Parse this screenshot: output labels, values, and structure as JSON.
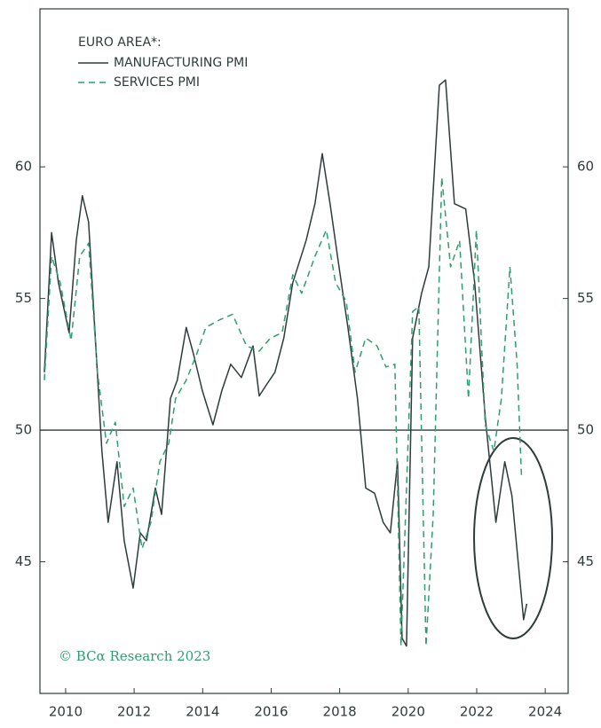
{
  "chart_data": {
    "type": "line",
    "title": "EURO AREA*:",
    "source": "© BCα Research 2023",
    "xlim": [
      2009.25,
      2024.67
    ],
    "xticks": [
      2010,
      2012,
      2014,
      2016,
      2018,
      2020,
      2022,
      2024
    ],
    "ylim": [
      40,
      66
    ],
    "yticks": [
      45,
      50,
      55,
      60
    ],
    "hline": 50,
    "series": [
      {
        "name": "MANUFACTURING PMI",
        "color": "#2f3b3b",
        "dash": false,
        "x": [
          2009.38,
          2009.59,
          2009.79,
          2010.1,
          2010.31,
          2010.49,
          2010.67,
          2010.88,
          2011.06,
          2011.24,
          2011.5,
          2011.71,
          2011.97,
          2012.18,
          2012.36,
          2012.62,
          2012.8,
          2013.06,
          2013.26,
          2013.52,
          2013.73,
          2013.99,
          2014.3,
          2014.56,
          2014.82,
          2015.13,
          2015.47,
          2015.65,
          2015.85,
          2016.11,
          2016.37,
          2016.63,
          2017.02,
          2017.28,
          2017.49,
          2017.72,
          2017.98,
          2018.24,
          2018.52,
          2018.76,
          2019.02,
          2019.27,
          2019.48,
          2019.69,
          2019.82,
          2019.95,
          2020.13,
          2020.39,
          2020.6,
          2020.91,
          2021.09,
          2021.35,
          2021.68,
          2021.94,
          2022.25,
          2022.56,
          2022.82,
          2023.03,
          2023.37,
          2023.46
        ],
        "values": [
          52.2,
          57.5,
          55.6,
          53.7,
          57.2,
          58.9,
          57.9,
          53.2,
          49.2,
          46.5,
          48.8,
          45.8,
          44.0,
          46.1,
          45.8,
          47.8,
          46.8,
          51.2,
          51.9,
          53.9,
          52.9,
          51.5,
          50.2,
          51.5,
          52.5,
          52.0,
          53.2,
          51.3,
          51.7,
          52.2,
          53.5,
          55.6,
          57.2,
          58.6,
          60.5,
          58.6,
          56.2,
          53.9,
          51.2,
          47.8,
          47.6,
          46.5,
          46.1,
          48.8,
          42.1,
          41.8,
          53.5,
          55.2,
          56.2,
          63.1,
          63.3,
          58.6,
          58.4,
          55.6,
          50.5,
          46.5,
          48.8,
          47.5,
          42.8,
          43.4
        ]
      },
      {
        "name": "SERVICES PMI",
        "color": "#2e9e6e",
        "dash": true,
        "x": [
          2009.38,
          2009.59,
          2009.84,
          2010.16,
          2010.41,
          2010.67,
          2010.93,
          2011.19,
          2011.45,
          2011.71,
          2011.97,
          2012.23,
          2012.49,
          2012.75,
          2013.01,
          2013.21,
          2013.52,
          2013.83,
          2014.09,
          2014.51,
          2014.87,
          2015.28,
          2015.65,
          2015.98,
          2016.32,
          2016.63,
          2016.89,
          2017.28,
          2017.61,
          2017.88,
          2018.19,
          2018.45,
          2018.76,
          2019.09,
          2019.35,
          2019.61,
          2019.79,
          2020.13,
          2020.31,
          2020.52,
          2020.73,
          2020.98,
          2021.24,
          2021.5,
          2021.76,
          2021.99,
          2022.25,
          2022.5,
          2022.72,
          2022.97,
          2023.18,
          2023.31
        ],
        "values": [
          51.9,
          56.6,
          55.6,
          53.4,
          56.6,
          57.1,
          52.2,
          49.5,
          50.3,
          47.1,
          47.8,
          45.5,
          46.5,
          48.8,
          49.5,
          51.2,
          51.9,
          52.9,
          53.9,
          54.2,
          54.4,
          53.2,
          53.0,
          53.5,
          53.7,
          55.9,
          55.2,
          56.6,
          57.6,
          55.6,
          54.9,
          52.2,
          53.5,
          53.2,
          52.4,
          52.5,
          41.8,
          54.5,
          54.7,
          41.8,
          46.8,
          59.6,
          56.2,
          57.2,
          51.2,
          57.6,
          50.2,
          49.2,
          51.2,
          56.2,
          52.5,
          48.2
        ]
      }
    ]
  }
}
